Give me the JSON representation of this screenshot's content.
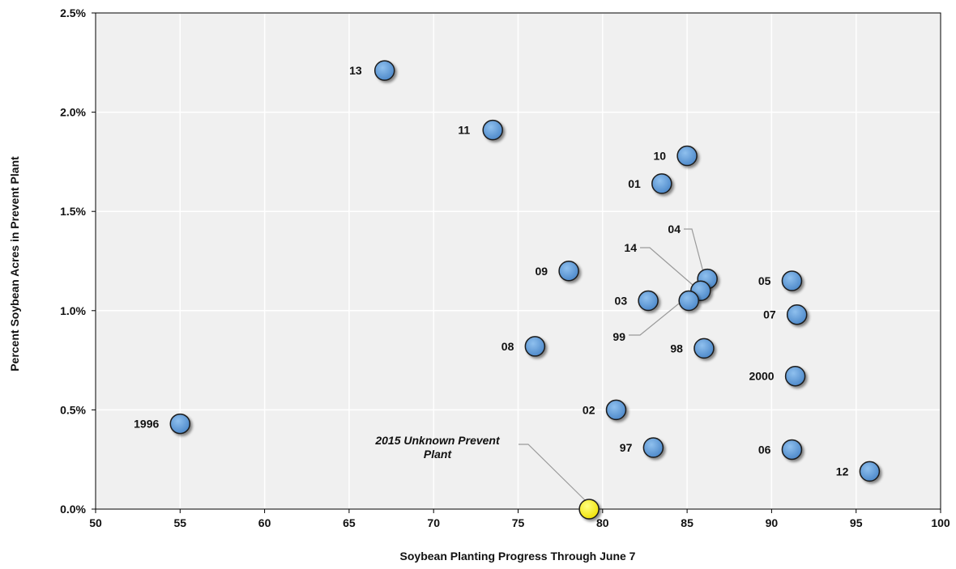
{
  "chart_data": {
    "type": "scatter",
    "title": "",
    "xlabel": "Soybean Planting Progress Through June 7",
    "ylabel": "Percent Soybean Acres in Prevent Plant",
    "xlim": [
      50,
      100
    ],
    "ylim": [
      0,
      2.5
    ],
    "x_ticks": [
      "50",
      "55",
      "60",
      "65",
      "70",
      "75",
      "80",
      "85",
      "90",
      "95",
      "100"
    ],
    "y_ticks": [
      "0.0%",
      "0.5%",
      "1.0%",
      "1.5%",
      "2.0%",
      "2.5%"
    ],
    "grid": true,
    "colors": {
      "point": "#5b9bd5",
      "highlight": "#ffff00",
      "plot_background": "#f0f0f0",
      "grid": "#ffffff"
    },
    "series": [
      {
        "points": [
          {
            "label": "13",
            "x": 67.1,
            "y": 2.21
          },
          {
            "label": "11",
            "x": 73.5,
            "y": 1.91
          },
          {
            "label": "10",
            "x": 85.0,
            "y": 1.78
          },
          {
            "label": "01",
            "x": 83.5,
            "y": 1.64
          },
          {
            "label": "04",
            "x": 86.2,
            "y": 1.16
          },
          {
            "label": "14",
            "x": 85.8,
            "y": 1.1
          },
          {
            "label": "09",
            "x": 78.0,
            "y": 1.2
          },
          {
            "label": "05",
            "x": 91.2,
            "y": 1.15
          },
          {
            "label": "03",
            "x": 82.7,
            "y": 1.05
          },
          {
            "label": "99",
            "x": 85.1,
            "y": 1.05
          },
          {
            "label": "07",
            "x": 91.5,
            "y": 0.98
          },
          {
            "label": "08",
            "x": 76.0,
            "y": 0.82
          },
          {
            "label": "98",
            "x": 86.0,
            "y": 0.81
          },
          {
            "label": "2000",
            "x": 91.4,
            "y": 0.67
          },
          {
            "label": "02",
            "x": 80.8,
            "y": 0.5
          },
          {
            "label": "1996",
            "x": 55.0,
            "y": 0.43
          },
          {
            "label": "97",
            "x": 83.0,
            "y": 0.31
          },
          {
            "label": "06",
            "x": 91.2,
            "y": 0.3
          },
          {
            "label": "12",
            "x": 95.8,
            "y": 0.19
          }
        ]
      },
      {
        "points": [
          {
            "label": "2015 Unknown Prevent Plant",
            "label_lines": [
              "2015 Unknown Prevent",
              "Plant"
            ],
            "x": 79.2,
            "y": 0.0
          }
        ]
      }
    ]
  }
}
